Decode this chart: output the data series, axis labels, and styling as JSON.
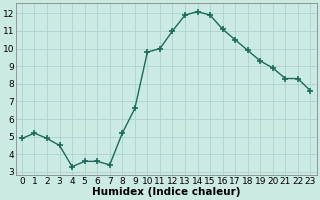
{
  "x": [
    0,
    1,
    2,
    3,
    4,
    5,
    6,
    7,
    8,
    9,
    10,
    11,
    12,
    13,
    14,
    15,
    16,
    17,
    18,
    19,
    20,
    21,
    22,
    23
  ],
  "y": [
    4.9,
    5.2,
    4.9,
    4.5,
    3.3,
    3.6,
    3.6,
    3.4,
    5.2,
    6.6,
    9.8,
    10.0,
    11.0,
    11.9,
    12.1,
    11.9,
    11.1,
    10.5,
    9.9,
    9.3,
    8.9,
    8.3,
    8.3,
    7.6
  ],
  "line_color": "#1a6b5a",
  "marker": "+",
  "markersize": 4,
  "markeredgewidth": 1.2,
  "linewidth": 1.0,
  "xlabel": "Humidex (Indice chaleur)",
  "ylabel": "",
  "title": "",
  "xlim": [
    -0.5,
    23.5
  ],
  "ylim": [
    2.8,
    12.6
  ],
  "yticks": [
    3,
    4,
    5,
    6,
    7,
    8,
    9,
    10,
    11,
    12
  ],
  "xticks": [
    0,
    1,
    2,
    3,
    4,
    5,
    6,
    7,
    8,
    9,
    10,
    11,
    12,
    13,
    14,
    15,
    16,
    17,
    18,
    19,
    20,
    21,
    22,
    23
  ],
  "xtick_labels": [
    "0",
    "1",
    "2",
    "3",
    "4",
    "5",
    "6",
    "7",
    "8",
    "9",
    "10",
    "11",
    "12",
    "13",
    "14",
    "15",
    "16",
    "17",
    "18",
    "19",
    "20",
    "21",
    "22",
    "23"
  ],
  "bg_color": "#cceae4",
  "grid_color": "#aad4cc",
  "tick_fontsize": 6.5,
  "xlabel_fontsize": 7.5
}
